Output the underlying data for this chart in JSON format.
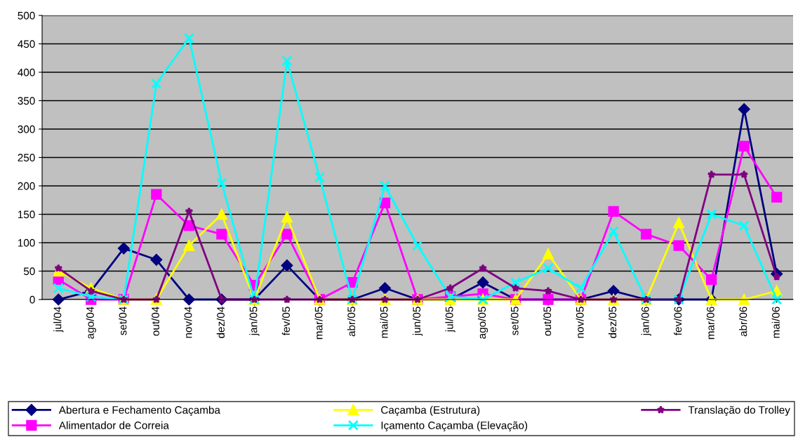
{
  "chart_data": {
    "type": "line",
    "categories": [
      "jul/04",
      "ago/04",
      "set/04",
      "out/04",
      "nov/04",
      "dez/04",
      "jan/05",
      "fev/05",
      "mar/05",
      "abr/05",
      "mai/05",
      "jun/05",
      "jul/05",
      "ago/05",
      "set/05",
      "out/05",
      "nov/05",
      "dez/05",
      "jan/06",
      "fev/06",
      "mar/06",
      "abr/06",
      "mai/06"
    ],
    "series": [
      {
        "name": "Abertura e Fechamento Caçamba",
        "color": "#000080",
        "marker": "diamond",
        "values": [
          0,
          15,
          90,
          70,
          0,
          0,
          0,
          60,
          0,
          0,
          20,
          0,
          0,
          30,
          0,
          0,
          0,
          15,
          0,
          0,
          0,
          335,
          45
        ]
      },
      {
        "name": "Alimentador de Correia",
        "color": "#ff00ff",
        "marker": "square",
        "values": [
          35,
          0,
          0,
          185,
          130,
          115,
          25,
          115,
          0,
          30,
          170,
          0,
          5,
          10,
          0,
          0,
          0,
          155,
          115,
          95,
          35,
          270,
          180
        ]
      },
      {
        "name": "Caçamba (Estrutura)",
        "color": "#ffff00",
        "marker": "triangle",
        "values": [
          50,
          20,
          0,
          0,
          95,
          150,
          0,
          145,
          0,
          0,
          0,
          0,
          0,
          0,
          0,
          80,
          0,
          0,
          0,
          135,
          0,
          0,
          15
        ]
      },
      {
        "name": "Içamento Caçamba (Elevação)",
        "color": "#00ffff",
        "marker": "cross",
        "values": [
          20,
          5,
          0,
          380,
          460,
          205,
          0,
          420,
          215,
          0,
          200,
          95,
          5,
          0,
          30,
          55,
          20,
          120,
          0,
          0,
          150,
          130,
          0
        ]
      },
      {
        "name": "Translação do Trolley",
        "color": "#800080",
        "marker": "star",
        "values": [
          55,
          15,
          0,
          0,
          155,
          0,
          0,
          0,
          0,
          0,
          0,
          0,
          20,
          55,
          20,
          15,
          0,
          0,
          0,
          0,
          220,
          220,
          40
        ]
      }
    ],
    "ylim": [
      0,
      500
    ],
    "yticks": [
      0,
      50,
      100,
      150,
      200,
      250,
      300,
      350,
      400,
      450,
      500
    ],
    "grid": "y",
    "legend": "bottom",
    "line_style": "solid"
  }
}
